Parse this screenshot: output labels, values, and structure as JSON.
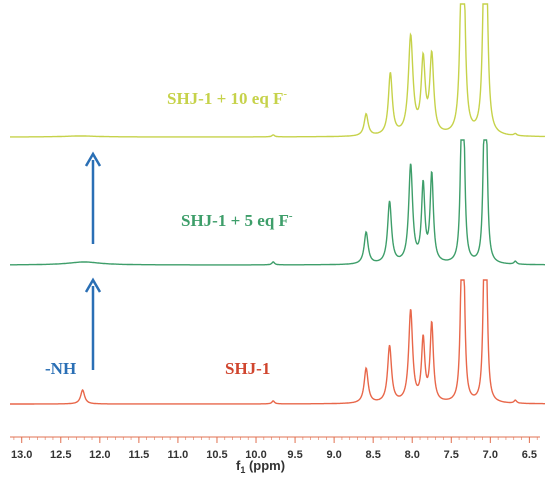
{
  "chart_data": {
    "type": "line",
    "xlabel_main": "f",
    "xlabel_sub": "1",
    "xlabel_unit": " (ppm)",
    "xlim": [
      13.15,
      6.3
    ],
    "x_ticks": [
      "13.0",
      "12.5",
      "12.0",
      "11.5",
      "11.0",
      "10.5",
      "10.0",
      "9.5",
      "9.0",
      "8.5",
      "8.0",
      "7.5",
      "7.0",
      "6.5"
    ],
    "x_tick_values": [
      13.0,
      12.5,
      12.0,
      11.5,
      11.0,
      10.5,
      10.0,
      9.5,
      9.0,
      8.5,
      8.0,
      7.5,
      7.0,
      6.5
    ],
    "series": [
      {
        "name": "SHJ-1 + 10 eq F",
        "name_parts": [
          "SHJ-1 + 10 eq F",
          "-"
        ],
        "color": "#c6d24a",
        "peaks": [
          {
            "ppm": 12.25,
            "height": 0.01,
            "width": 0.25
          },
          {
            "ppm": 9.78,
            "height": 0.02,
            "width": 0.02
          },
          {
            "ppm": 8.59,
            "height": 0.22,
            "width": 0.03
          },
          {
            "ppm": 8.28,
            "height": 0.62,
            "width": 0.03
          },
          {
            "ppm": 8.02,
            "height": 0.98,
            "width": 0.035
          },
          {
            "ppm": 7.86,
            "height": 0.73,
            "width": 0.03
          },
          {
            "ppm": 7.75,
            "height": 0.78,
            "width": 0.03
          },
          {
            "ppm": 7.37,
            "height": 1.3,
            "width": 0.025
          },
          {
            "ppm": 7.34,
            "height": 1.3,
            "width": 0.025
          },
          {
            "ppm": 7.08,
            "height": 1.3,
            "width": 0.025
          },
          {
            "ppm": 7.05,
            "height": 1.3,
            "width": 0.025
          },
          {
            "ppm": 6.68,
            "height": 0.02,
            "width": 0.02
          }
        ]
      },
      {
        "name": "SHJ-1 + 5 eq F",
        "name_parts": [
          "SHJ-1 + 5 eq F",
          "-"
        ],
        "color": "#3e9e6a",
        "peaks": [
          {
            "ppm": 12.2,
            "height": 0.03,
            "width": 0.25
          },
          {
            "ppm": 9.78,
            "height": 0.03,
            "width": 0.02
          },
          {
            "ppm": 8.59,
            "height": 0.32,
            "width": 0.03
          },
          {
            "ppm": 8.29,
            "height": 0.62,
            "width": 0.03
          },
          {
            "ppm": 8.02,
            "height": 0.98,
            "width": 0.03
          },
          {
            "ppm": 7.86,
            "height": 0.77,
            "width": 0.025
          },
          {
            "ppm": 7.75,
            "height": 0.88,
            "width": 0.025
          },
          {
            "ppm": 7.37,
            "height": 1.12,
            "width": 0.02
          },
          {
            "ppm": 7.34,
            "height": 1.12,
            "width": 0.02
          },
          {
            "ppm": 7.08,
            "height": 1.08,
            "width": 0.02
          },
          {
            "ppm": 7.05,
            "height": 1.08,
            "width": 0.02
          },
          {
            "ppm": 6.68,
            "height": 0.03,
            "width": 0.02
          }
        ]
      },
      {
        "name": "SHJ-1",
        "name_parts": [
          "SHJ-1",
          ""
        ],
        "color": "#e8674a",
        "peaks": [
          {
            "ppm": 12.22,
            "height": 0.14,
            "width": 0.03
          },
          {
            "ppm": 9.78,
            "height": 0.03,
            "width": 0.02
          },
          {
            "ppm": 8.59,
            "height": 0.35,
            "width": 0.03
          },
          {
            "ppm": 8.29,
            "height": 0.57,
            "width": 0.03
          },
          {
            "ppm": 8.02,
            "height": 0.92,
            "width": 0.03
          },
          {
            "ppm": 7.86,
            "height": 0.62,
            "width": 0.025
          },
          {
            "ppm": 7.75,
            "height": 0.78,
            "width": 0.025
          },
          {
            "ppm": 7.37,
            "height": 1.12,
            "width": 0.02
          },
          {
            "ppm": 7.34,
            "height": 1.12,
            "width": 0.02
          },
          {
            "ppm": 7.08,
            "height": 1.12,
            "width": 0.02
          },
          {
            "ppm": 7.05,
            "height": 1.12,
            "width": 0.02
          },
          {
            "ppm": 6.68,
            "height": 0.03,
            "width": 0.02
          }
        ]
      }
    ],
    "annotations": [
      {
        "text": "-NH",
        "color": "#2a6fb5"
      }
    ],
    "arrows": [
      {
        "direction": "up",
        "ppm": 12.2,
        "color": "#2a6fb5"
      },
      {
        "direction": "up",
        "ppm": 12.2,
        "color": "#2a6fb5"
      }
    ],
    "grid": false,
    "legend": "none"
  }
}
